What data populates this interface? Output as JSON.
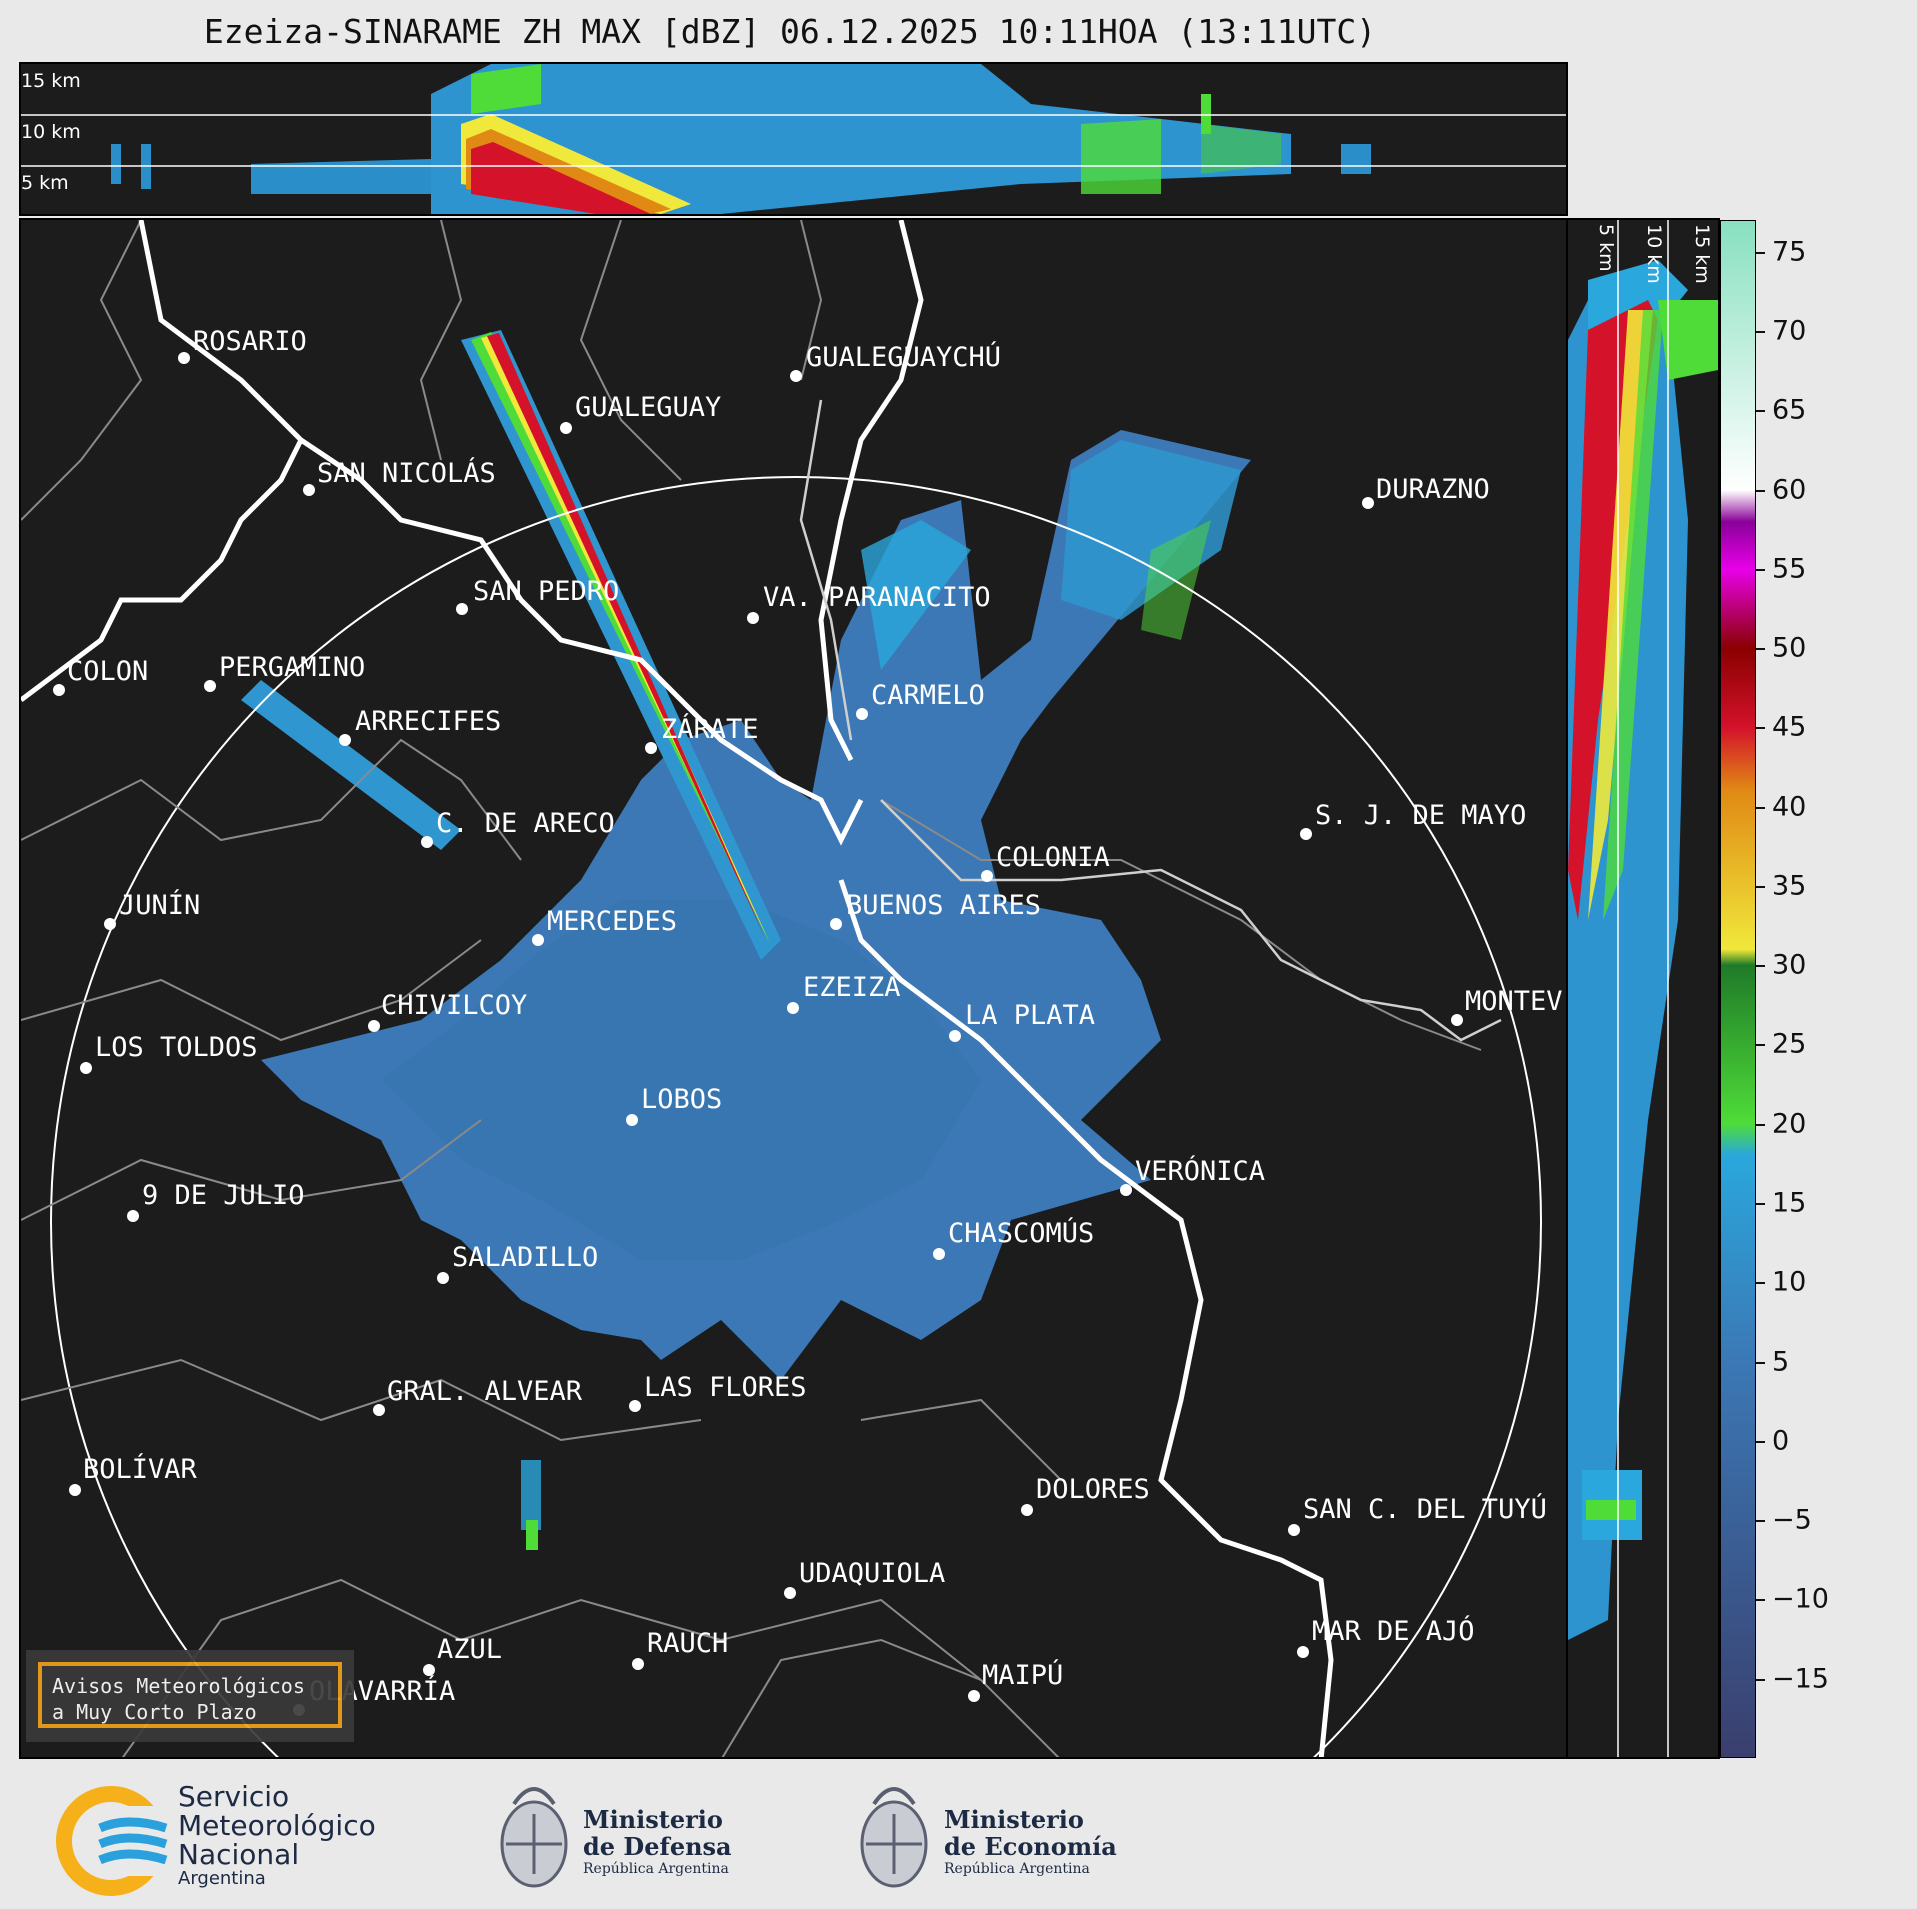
{
  "title": "Ezeiza-SINARAME ZH MAX [dBZ] 06.12.2025 10:11HOA (13:11UTC)",
  "altitude_labels_top": [
    "15 km",
    "10 km",
    "5 km"
  ],
  "altitude_labels_side": [
    "5 km",
    "10 km",
    "15 km"
  ],
  "colorbar": {
    "unit": "dBZ",
    "ticks": [
      "75",
      "70",
      "65",
      "60",
      "55",
      "50",
      "45",
      "40",
      "35",
      "30",
      "25",
      "20",
      "15",
      "10",
      "5",
      "0",
      "−5",
      "−10",
      "−15"
    ],
    "range": [
      -20,
      77
    ],
    "colors": {
      "neg": "#3a3f6e",
      "low_blue": "#3b78b5",
      "light_blue": "#2aa7dc",
      "green": "#4fdc38",
      "dark_green": "#1f7a28",
      "yellow": "#f0e83a",
      "orange": "#e08a15",
      "red": "#d4122a",
      "dark_red": "#8a0000",
      "magenta": "#e800e8",
      "purple": "#8a0099",
      "white": "#ffffff",
      "mint": "#88e0c0"
    }
  },
  "cities": [
    {
      "name": "ROSARIO"
    },
    {
      "name": "GUALEGUAYCHÚ"
    },
    {
      "name": "GUALEGUAY"
    },
    {
      "name": "SAN NICOLÁS"
    },
    {
      "name": "DURAZNO"
    },
    {
      "name": "SAN PEDRO"
    },
    {
      "name": "VA. PARANACITO"
    },
    {
      "name": "COLON"
    },
    {
      "name": "PERGAMINO"
    },
    {
      "name": "CARMELO"
    },
    {
      "name": "ARRECIFES"
    },
    {
      "name": "ZÁRATE"
    },
    {
      "name": "S. J. DE MAYO"
    },
    {
      "name": "C. DE ARECO"
    },
    {
      "name": "COLONIA"
    },
    {
      "name": "BUENOS AIRES"
    },
    {
      "name": "JUNÍN"
    },
    {
      "name": "MERCEDES"
    },
    {
      "name": "EZEIZA"
    },
    {
      "name": "MONTEV"
    },
    {
      "name": "CHIVILCOY"
    },
    {
      "name": "LA PLATA"
    },
    {
      "name": "LOS TOLDOS"
    },
    {
      "name": "LOBOS"
    },
    {
      "name": "VERÓNICA"
    },
    {
      "name": "9 DE JULIO"
    },
    {
      "name": "CHASCOMÚS"
    },
    {
      "name": "SALADILLO"
    },
    {
      "name": "GRAL. ALVEAR"
    },
    {
      "name": "LAS FLORES"
    },
    {
      "name": "BOLÍVAR"
    },
    {
      "name": "DOLORES"
    },
    {
      "name": "SAN C. DEL TUYÚ"
    },
    {
      "name": "UDAQUIOLA"
    },
    {
      "name": "RAUCH"
    },
    {
      "name": "AZUL"
    },
    {
      "name": "MAR DE AJÓ"
    },
    {
      "name": "OLAVARRÍA"
    },
    {
      "name": "MAIPÚ"
    }
  ],
  "warning_box": {
    "line1": "Avisos Meteorológicos",
    "line2": "a Muy Corto Plazo"
  },
  "logos": {
    "smn": {
      "line1": "Servicio",
      "line2": "Meteorológico",
      "line3": "Nacional",
      "line4": "Argentina"
    },
    "defensa": {
      "line1": "Ministerio",
      "line2": "de Defensa",
      "line3": "República Argentina"
    },
    "economia": {
      "line1": "Ministerio",
      "line2": "de Economía",
      "line3": "República Argentina"
    }
  }
}
